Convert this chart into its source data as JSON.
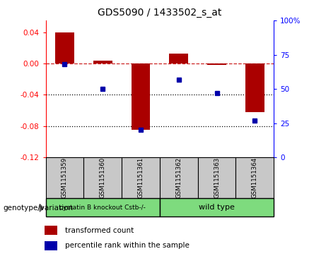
{
  "title": "GDS5090 / 1433502_s_at",
  "samples": [
    "GSM1151359",
    "GSM1151360",
    "GSM1151361",
    "GSM1151362",
    "GSM1151363",
    "GSM1151364"
  ],
  "red_values": [
    0.04,
    0.004,
    -0.085,
    0.013,
    -0.002,
    -0.062
  ],
  "blue_values": [
    68,
    50,
    20,
    57,
    47,
    27
  ],
  "group1_label": "cystatin B knockout Cstb-/-",
  "group2_label": "wild type",
  "group_color": "#7EDB7E",
  "sample_bg": "#C8C8C8",
  "ylim_left": [
    -0.12,
    0.055
  ],
  "ylim_right": [
    0,
    100
  ],
  "yticks_left": [
    0.04,
    0.0,
    -0.04,
    -0.08,
    -0.12
  ],
  "yticks_right_vals": [
    100,
    75,
    50,
    25,
    0
  ],
  "yticks_right_labels": [
    "100%",
    "75",
    "50",
    "25",
    "0"
  ],
  "dotted_lines": [
    -0.04,
    -0.08
  ],
  "bar_color": "#AA0000",
  "dot_color": "#0000AA",
  "legend_items": [
    "transformed count",
    "percentile rank within the sample"
  ],
  "group_label": "genotype/variation"
}
